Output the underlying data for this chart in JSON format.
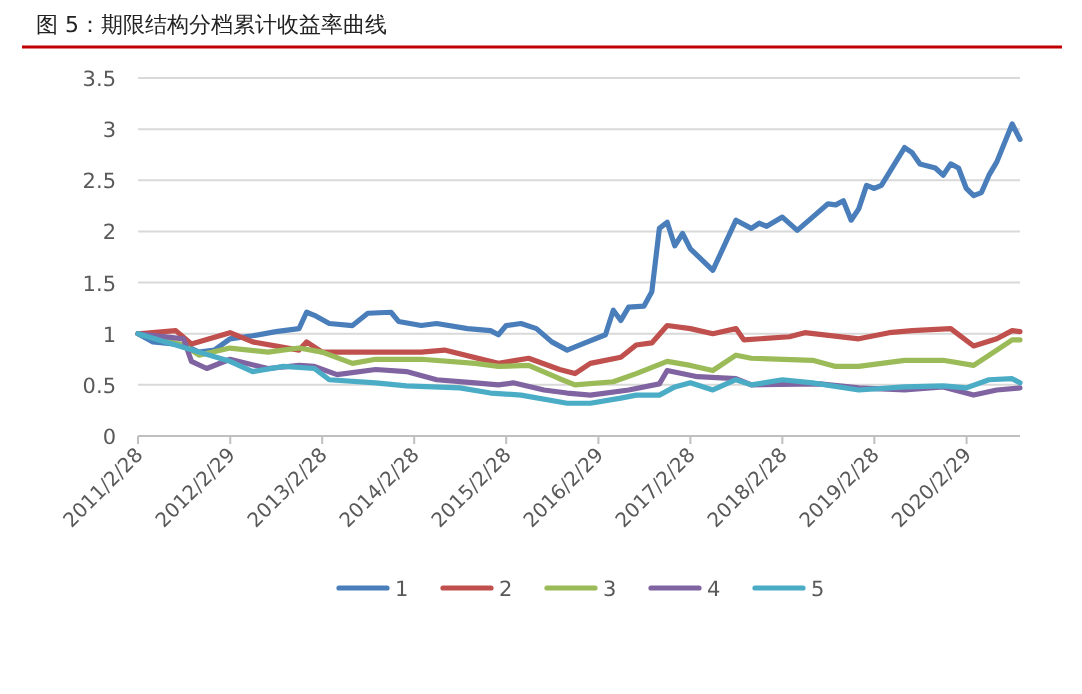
{
  "chart_data": {
    "type": "line",
    "title": "图 5：期限结构分档累计收益率曲线",
    "xlim": [
      "2011-02-28",
      "2020-09-28"
    ],
    "xticks": [
      {
        "value": "2011-02-28",
        "label": "2011/2/28"
      },
      {
        "value": "2012-02-29",
        "label": "2012/2/29"
      },
      {
        "value": "2013-02-28",
        "label": "2013/2/28"
      },
      {
        "value": "2014-02-28",
        "label": "2014/2/28"
      },
      {
        "value": "2015-02-28",
        "label": "2015/2/28"
      },
      {
        "value": "2016-02-29",
        "label": "2016/2/29"
      },
      {
        "value": "2017-02-28",
        "label": "2017/2/28"
      },
      {
        "value": "2018-02-28",
        "label": "2018/2/28"
      },
      {
        "value": "2019-02-28",
        "label": "2019/2/28"
      },
      {
        "value": "2020-02-29",
        "label": "2020/2/29"
      }
    ],
    "ylim": [
      0,
      3.5
    ],
    "yticks": [
      0,
      0.5,
      1,
      1.5,
      2,
      2.5,
      3,
      3.5
    ],
    "grid": "y",
    "legend": "bottom",
    "marker": "none",
    "line_style": "solid",
    "series": [
      {
        "name": "1",
        "color": "#4a7ebb",
        "x": [
          "2011-02-28",
          "2011-04-28",
          "2011-08-28",
          "2011-10-28",
          "2011-12-28",
          "2012-02-28",
          "2012-05-28",
          "2012-08-28",
          "2012-11-28",
          "2012-12-28",
          "2013-01-28",
          "2013-03-28",
          "2013-06-28",
          "2013-08-28",
          "2013-11-28",
          "2013-12-28",
          "2014-03-28",
          "2014-05-28",
          "2014-09-28",
          "2014-12-28",
          "2015-01-28",
          "2015-02-28",
          "2015-04-28",
          "2015-06-28",
          "2015-08-28",
          "2015-10-28",
          "2015-12-28",
          "2016-03-28",
          "2016-04-28",
          "2016-05-28",
          "2016-06-28",
          "2016-08-28",
          "2016-09-28",
          "2016-10-28",
          "2016-11-28",
          "2016-12-28",
          "2017-01-28",
          "2017-02-28",
          "2017-05-28",
          "2017-08-28",
          "2017-10-28",
          "2017-11-28",
          "2017-12-28",
          "2018-02-28",
          "2018-04-28",
          "2018-06-28",
          "2018-08-28",
          "2018-09-28",
          "2018-10-28",
          "2018-11-28",
          "2018-12-28",
          "2019-01-28",
          "2019-02-28",
          "2019-03-28",
          "2019-06-28",
          "2019-07-28",
          "2019-08-28",
          "2019-10-28",
          "2019-11-28",
          "2019-12-28",
          "2020-01-28",
          "2020-02-28",
          "2020-03-28",
          "2020-04-28",
          "2020-05-28",
          "2020-06-28",
          "2020-08-28",
          "2020-09-28"
        ],
        "values": [
          1.0,
          0.92,
          0.89,
          0.82,
          0.84,
          0.95,
          0.98,
          1.02,
          1.05,
          1.21,
          1.18,
          1.1,
          1.08,
          1.2,
          1.21,
          1.12,
          1.08,
          1.1,
          1.05,
          1.03,
          0.99,
          1.08,
          1.1,
          1.05,
          0.92,
          0.84,
          0.9,
          0.99,
          1.23,
          1.13,
          1.26,
          1.27,
          1.41,
          2.03,
          2.09,
          1.86,
          1.98,
          1.83,
          1.62,
          2.11,
          2.03,
          2.08,
          2.05,
          2.14,
          2.01,
          2.14,
          2.27,
          2.26,
          2.3,
          2.11,
          2.22,
          2.45,
          2.42,
          2.45,
          2.82,
          2.77,
          2.66,
          2.62,
          2.55,
          2.66,
          2.62,
          2.42,
          2.35,
          2.38,
          2.55,
          2.68,
          3.05,
          2.9
        ]
      },
      {
        "name": "2",
        "color": "#c0504d",
        "x": [
          "2011-02-28",
          "2011-07-28",
          "2011-09-28",
          "2012-02-28",
          "2012-05-28",
          "2012-11-28",
          "2012-12-28",
          "2013-02-28",
          "2013-09-28",
          "2014-03-28",
          "2014-06-28",
          "2015-01-28",
          "2015-05-28",
          "2015-09-28",
          "2015-11-28",
          "2016-01-28",
          "2016-05-28",
          "2016-07-28",
          "2016-09-28",
          "2016-11-28",
          "2017-02-28",
          "2017-05-28",
          "2017-08-28",
          "2017-09-28",
          "2018-03-28",
          "2018-05-28",
          "2018-12-28",
          "2019-04-28",
          "2019-07-28",
          "2019-12-28",
          "2020-03-28",
          "2020-06-28",
          "2020-08-28",
          "2020-09-28"
        ],
        "values": [
          1.0,
          1.03,
          0.9,
          1.01,
          0.92,
          0.84,
          0.92,
          0.82,
          0.82,
          0.82,
          0.84,
          0.71,
          0.76,
          0.65,
          0.61,
          0.71,
          0.77,
          0.89,
          0.91,
          1.08,
          1.05,
          1.0,
          1.05,
          0.94,
          0.97,
          1.01,
          0.95,
          1.01,
          1.03,
          1.05,
          0.88,
          0.95,
          1.03,
          1.02
        ]
      },
      {
        "name": "3",
        "color": "#9bbb59",
        "x": [
          "2011-02-28",
          "2011-08-28",
          "2011-10-28",
          "2012-02-28",
          "2012-07-28",
          "2012-11-28",
          "2013-02-28",
          "2013-06-28",
          "2013-09-28",
          "2014-03-28",
          "2014-10-28",
          "2015-01-28",
          "2015-05-28",
          "2015-09-28",
          "2015-11-28",
          "2016-04-28",
          "2016-07-28",
          "2016-11-28",
          "2017-02-28",
          "2017-05-28",
          "2017-08-28",
          "2017-10-28",
          "2018-06-28",
          "2018-09-28",
          "2018-12-28",
          "2019-06-28",
          "2019-11-28",
          "2020-03-28",
          "2020-06-28",
          "2020-08-28",
          "2020-09-28"
        ],
        "values": [
          1.0,
          0.89,
          0.79,
          0.86,
          0.82,
          0.86,
          0.82,
          0.71,
          0.75,
          0.75,
          0.71,
          0.68,
          0.69,
          0.56,
          0.5,
          0.53,
          0.61,
          0.73,
          0.69,
          0.64,
          0.79,
          0.76,
          0.74,
          0.68,
          0.68,
          0.74,
          0.74,
          0.69,
          0.84,
          0.94,
          0.94
        ]
      },
      {
        "name": "4",
        "color": "#8064a2",
        "x": [
          "2011-02-28",
          "2011-08-28",
          "2011-09-28",
          "2011-11-28",
          "2012-02-28",
          "2012-07-28",
          "2012-11-28",
          "2013-01-28",
          "2013-04-28",
          "2013-09-28",
          "2014-01-28",
          "2014-05-28",
          "2014-10-28",
          "2015-01-28",
          "2015-03-28",
          "2015-07-28",
          "2015-10-28",
          "2016-01-28",
          "2016-06-28",
          "2016-10-28",
          "2016-11-28",
          "2017-03-28",
          "2017-08-28",
          "2017-10-28",
          "2018-07-28",
          "2018-12-28",
          "2019-06-28",
          "2019-11-28",
          "2020-03-28",
          "2020-06-28",
          "2020-09-28"
        ],
        "values": [
          1.0,
          0.95,
          0.73,
          0.66,
          0.75,
          0.66,
          0.69,
          0.68,
          0.6,
          0.65,
          0.63,
          0.55,
          0.52,
          0.5,
          0.52,
          0.45,
          0.42,
          0.4,
          0.45,
          0.51,
          0.64,
          0.58,
          0.56,
          0.5,
          0.51,
          0.47,
          0.45,
          0.48,
          0.4,
          0.45,
          0.47
        ]
      },
      {
        "name": "5",
        "color": "#4bacc6",
        "x": [
          "2011-02-28",
          "2011-07-28",
          "2011-10-28",
          "2012-02-28",
          "2012-05-28",
          "2012-09-28",
          "2013-01-28",
          "2013-03-28",
          "2013-09-28",
          "2014-01-28",
          "2014-08-28",
          "2014-12-28",
          "2015-04-28",
          "2015-10-28",
          "2016-01-28",
          "2016-05-28",
          "2016-07-28",
          "2016-10-28",
          "2016-12-28",
          "2017-02-28",
          "2017-05-28",
          "2017-08-28",
          "2017-10-28",
          "2018-02-28",
          "2018-06-28",
          "2018-12-28",
          "2019-06-28",
          "2019-11-28",
          "2020-02-28",
          "2020-05-28",
          "2020-08-28",
          "2020-09-28"
        ],
        "values": [
          1.0,
          0.89,
          0.82,
          0.73,
          0.63,
          0.68,
          0.66,
          0.55,
          0.52,
          0.49,
          0.47,
          0.42,
          0.4,
          0.32,
          0.32,
          0.37,
          0.4,
          0.4,
          0.48,
          0.52,
          0.45,
          0.55,
          0.5,
          0.55,
          0.52,
          0.45,
          0.48,
          0.49,
          0.47,
          0.55,
          0.56,
          0.52
        ]
      }
    ]
  }
}
